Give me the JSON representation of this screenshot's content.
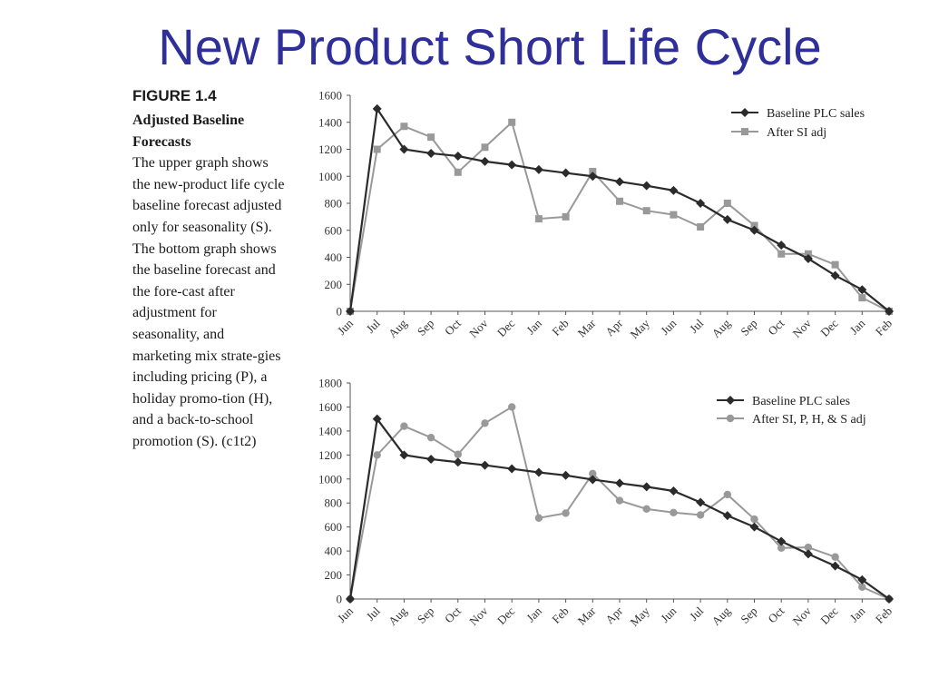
{
  "slide": {
    "title": "New Product Short Life Cycle"
  },
  "caption": {
    "figure_number": "FIGURE 1.4",
    "figure_title": "Adjusted Baseline Forecasts",
    "description": "The upper graph shows the new-product life cycle baseline forecast adjusted only for seasonality (S). The bottom graph shows the baseline forecast and the fore-cast after adjustment for seasonality, and marketing mix strate-gies including pricing (P), a holiday promo-tion (H), and a back-to-school promotion (S). (c1t2)"
  },
  "colors": {
    "title": "#2f2f9a",
    "baseline": "#2b2b2b",
    "adjusted": "#999999"
  },
  "chart_data": [
    {
      "type": "line",
      "title": "",
      "xlabel": "",
      "ylabel": "",
      "ylim": [
        0,
        1600
      ],
      "yticks": [
        0,
        200,
        400,
        600,
        800,
        1000,
        1200,
        1400,
        1600
      ],
      "categories": [
        "Jun",
        "Jul",
        "Aug",
        "Sep",
        "Oct",
        "Nov",
        "Dec",
        "Jan",
        "Feb",
        "Mar",
        "Apr",
        "May",
        "Jun",
        "Jul",
        "Aug",
        "Sep",
        "Oct",
        "Nov",
        "Dec",
        "Jan",
        "Feb"
      ],
      "legend_position": "top-right",
      "grid": false,
      "series": [
        {
          "name": "Baseline PLC sales",
          "marker": "diamond",
          "color": "#2b2b2b",
          "values": [
            0,
            1500,
            1200,
            1170,
            1150,
            1110,
            1085,
            1050,
            1025,
            1000,
            960,
            930,
            895,
            800,
            680,
            600,
            490,
            390,
            265,
            160,
            0
          ]
        },
        {
          "name": "After SI adj",
          "marker": "square",
          "color": "#999999",
          "values": [
            0,
            1200,
            1370,
            1290,
            1030,
            1215,
            1400,
            685,
            700,
            1035,
            815,
            745,
            715,
            625,
            800,
            635,
            425,
            425,
            345,
            100,
            0
          ]
        }
      ]
    },
    {
      "type": "line",
      "title": "",
      "xlabel": "",
      "ylabel": "",
      "ylim": [
        0,
        1800
      ],
      "yticks": [
        0,
        200,
        400,
        600,
        800,
        1000,
        1200,
        1400,
        1600,
        1800
      ],
      "categories": [
        "Jun",
        "Jul",
        "Aug",
        "Sep",
        "Oct",
        "Nov",
        "Dec",
        "Jan",
        "Feb",
        "Mar",
        "Apr",
        "May",
        "Jun",
        "Jul",
        "Aug",
        "Sep",
        "Oct",
        "Nov",
        "Dec",
        "Jan",
        "Feb"
      ],
      "legend_position": "top-right",
      "grid": false,
      "series": [
        {
          "name": "Baseline PLC sales",
          "marker": "diamond",
          "color": "#2b2b2b",
          "values": [
            0,
            1500,
            1200,
            1165,
            1140,
            1115,
            1085,
            1055,
            1030,
            995,
            965,
            935,
            900,
            805,
            695,
            600,
            480,
            375,
            275,
            160,
            0
          ]
        },
        {
          "name": "After SI, P, H, & S adj",
          "marker": "circle",
          "color": "#999999",
          "values": [
            0,
            1200,
            1440,
            1345,
            1205,
            1465,
            1600,
            675,
            715,
            1045,
            820,
            750,
            720,
            700,
            870,
            665,
            425,
            430,
            350,
            100,
            0
          ]
        }
      ]
    }
  ]
}
